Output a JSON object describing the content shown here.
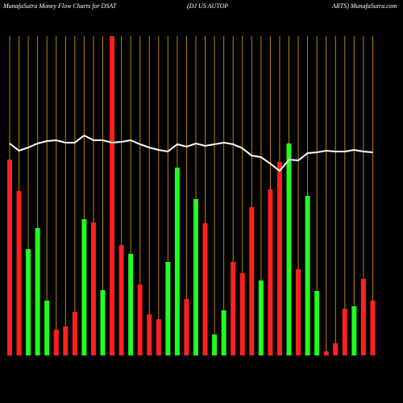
{
  "chart_data": {
    "type": "bar-line",
    "title": "MunafaSutra  Money Flow  Charts for DSAT",
    "subtitle": "(DJ US AUTOP",
    "source": "ARTS) MunafaSutra.com",
    "categories": [
      null,
      null,
      null,
      null,
      null,
      null,
      null,
      null,
      null,
      null,
      null,
      null,
      null,
      null,
      null,
      null,
      null,
      null,
      null,
      null,
      null,
      null,
      null,
      null,
      null,
      null,
      null,
      null,
      null,
      null,
      null,
      null,
      null,
      null,
      null,
      null,
      null,
      null,
      null,
      null
    ],
    "ylim": [
      0,
      400
    ],
    "grid": true,
    "grid_color": "#b8860b",
    "series": [
      {
        "kind": "bar",
        "values": [
          243,
          204,
          132,
          158,
          68,
          32,
          36,
          54,
          169,
          165,
          81,
          396,
          137,
          126,
          88,
          51,
          45,
          116,
          233,
          70,
          194,
          164,
          26,
          56,
          116,
          102,
          184,
          93,
          206,
          240,
          263,
          107,
          198,
          80,
          5,
          15,
          58,
          61,
          95,
          68
        ],
        "colors": [
          "#ff2020",
          "#ff2020",
          "#20ff20",
          "#20ff20",
          "#20ff20",
          "#ff2020",
          "#ff2020",
          "#ff2020",
          "#20ff20",
          "#ff2020",
          "#20ff20",
          "#ff2020",
          "#ff2020",
          "#20ff20",
          "#ff2020",
          "#ff2020",
          "#ff2020",
          "#20ff20",
          "#20ff20",
          "#ff2020",
          "#20ff20",
          "#ff2020",
          "#20ff20",
          "#20ff20",
          "#ff2020",
          "#ff2020",
          "#ff2020",
          "#20ff20",
          "#ff2020",
          "#ff2020",
          "#20ff20",
          "#ff2020",
          "#20ff20",
          "#20ff20",
          "#ff2020",
          "#ff2020",
          "#ff2020",
          "#20ff20",
          "#ff2020",
          "#ff2020"
        ]
      },
      {
        "kind": "line",
        "color": "#ffffff",
        "values": [
          263,
          254,
          258,
          263,
          266,
          267,
          264,
          264,
          273,
          267,
          267,
          264,
          265,
          267,
          262,
          258,
          255,
          253,
          262,
          259,
          263,
          260,
          262,
          264,
          262,
          257,
          248,
          246,
          238,
          229,
          243,
          242,
          251,
          252,
          254,
          253,
          253,
          255,
          253,
          252
        ]
      }
    ]
  }
}
